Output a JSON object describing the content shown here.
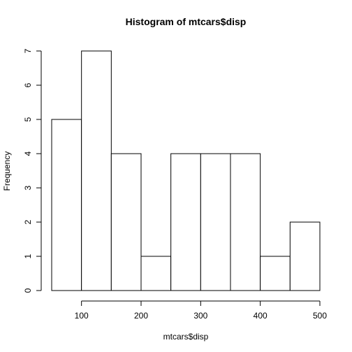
{
  "chart_data": {
    "type": "bar",
    "title": "Histogram of mtcars$disp",
    "xlabel": "mtcars$disp",
    "ylabel": "Frequency",
    "bin_edges": [
      50,
      100,
      150,
      200,
      250,
      300,
      350,
      400,
      450,
      500
    ],
    "values": [
      5,
      7,
      4,
      1,
      4,
      4,
      4,
      1,
      2
    ],
    "xlim": [
      50,
      500
    ],
    "ylim": [
      0,
      7
    ],
    "x_ticks": [
      100,
      200,
      300,
      400,
      500
    ],
    "y_ticks": [
      0,
      1,
      2,
      3,
      4,
      5,
      6,
      7
    ],
    "grid": false,
    "colors": {
      "bar_fill": "#ffffff",
      "bar_stroke": "#000000"
    }
  }
}
